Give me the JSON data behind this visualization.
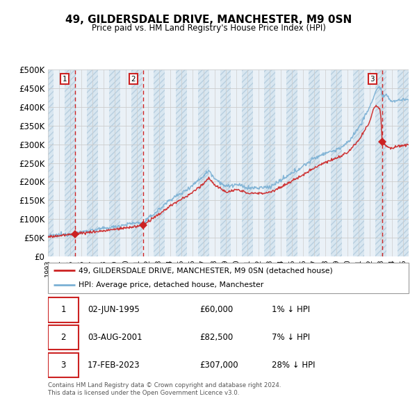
{
  "title": "49, GILDERSDALE DRIVE, MANCHESTER, M9 0SN",
  "subtitle": "Price paid vs. HM Land Registry's House Price Index (HPI)",
  "ylim": [
    0,
    500000
  ],
  "yticks": [
    0,
    50000,
    100000,
    150000,
    200000,
    250000,
    300000,
    350000,
    400000,
    450000,
    500000
  ],
  "xlim_start": 1993.0,
  "xlim_end": 2025.5,
  "sale_dates": [
    1995.42,
    2001.58,
    2023.12
  ],
  "sale_prices": [
    60000,
    82500,
    307000
  ],
  "sale_labels": [
    "1",
    "2",
    "3"
  ],
  "sale_color": "#cc2222",
  "hpi_color": "#7ab0d4",
  "legend_entries": [
    "49, GILDERSDALE DRIVE, MANCHESTER, M9 0SN (detached house)",
    "HPI: Average price, detached house, Manchester"
  ],
  "table_rows": [
    [
      "1",
      "02-JUN-1995",
      "£60,000",
      "1% ↓ HPI"
    ],
    [
      "2",
      "03-AUG-2001",
      "£82,500",
      "7% ↓ HPI"
    ],
    [
      "3",
      "17-FEB-2023",
      "£307,000",
      "28% ↓ HPI"
    ]
  ],
  "footnote1": "Contains HM Land Registry data © Crown copyright and database right 2024.",
  "footnote2": "This data is licensed under the Open Government Licence v3.0.",
  "bg_hatched_color": "#d8e6f0",
  "bg_plain_color": "#eaf1f7",
  "grid_color": "#cccccc",
  "dashed_line_color": "#cc2222",
  "fig_bg": "#ffffff"
}
